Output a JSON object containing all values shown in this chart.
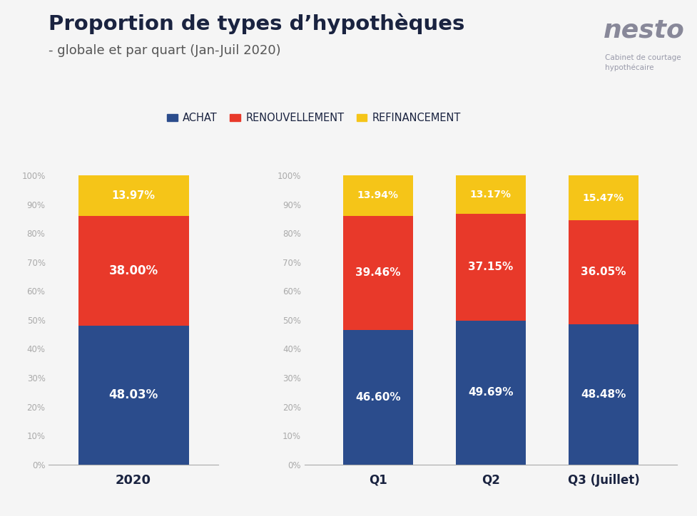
{
  "title": "Proportion de types d’hypothèques",
  "subtitle": "- globale et par quart (Jan-Juil 2020)",
  "background_color": "#f5f5f5",
  "categories_left": [
    "2020"
  ],
  "categories_right": [
    "Q1",
    "Q2",
    "Q3 (Juillet)"
  ],
  "achat": [
    48.03,
    46.6,
    49.69,
    48.48
  ],
  "renouvellement": [
    38.0,
    39.46,
    37.15,
    36.05
  ],
  "refinancement": [
    13.97,
    13.94,
    13.17,
    15.47
  ],
  "color_achat": "#2B4C8C",
  "color_renouvellement": "#E8392A",
  "color_refinancement": "#F5C518",
  "color_title": "#1a2340",
  "color_subtitle": "#555555",
  "color_tick": "#aaaaaa",
  "legend_labels": [
    "ACHAT",
    "RENOUVELLEMENT",
    "REFINANCEMENT"
  ],
  "nesto_text": "nesto",
  "nesto_subtext": "Cabinet de courtage\nhypothécaire"
}
